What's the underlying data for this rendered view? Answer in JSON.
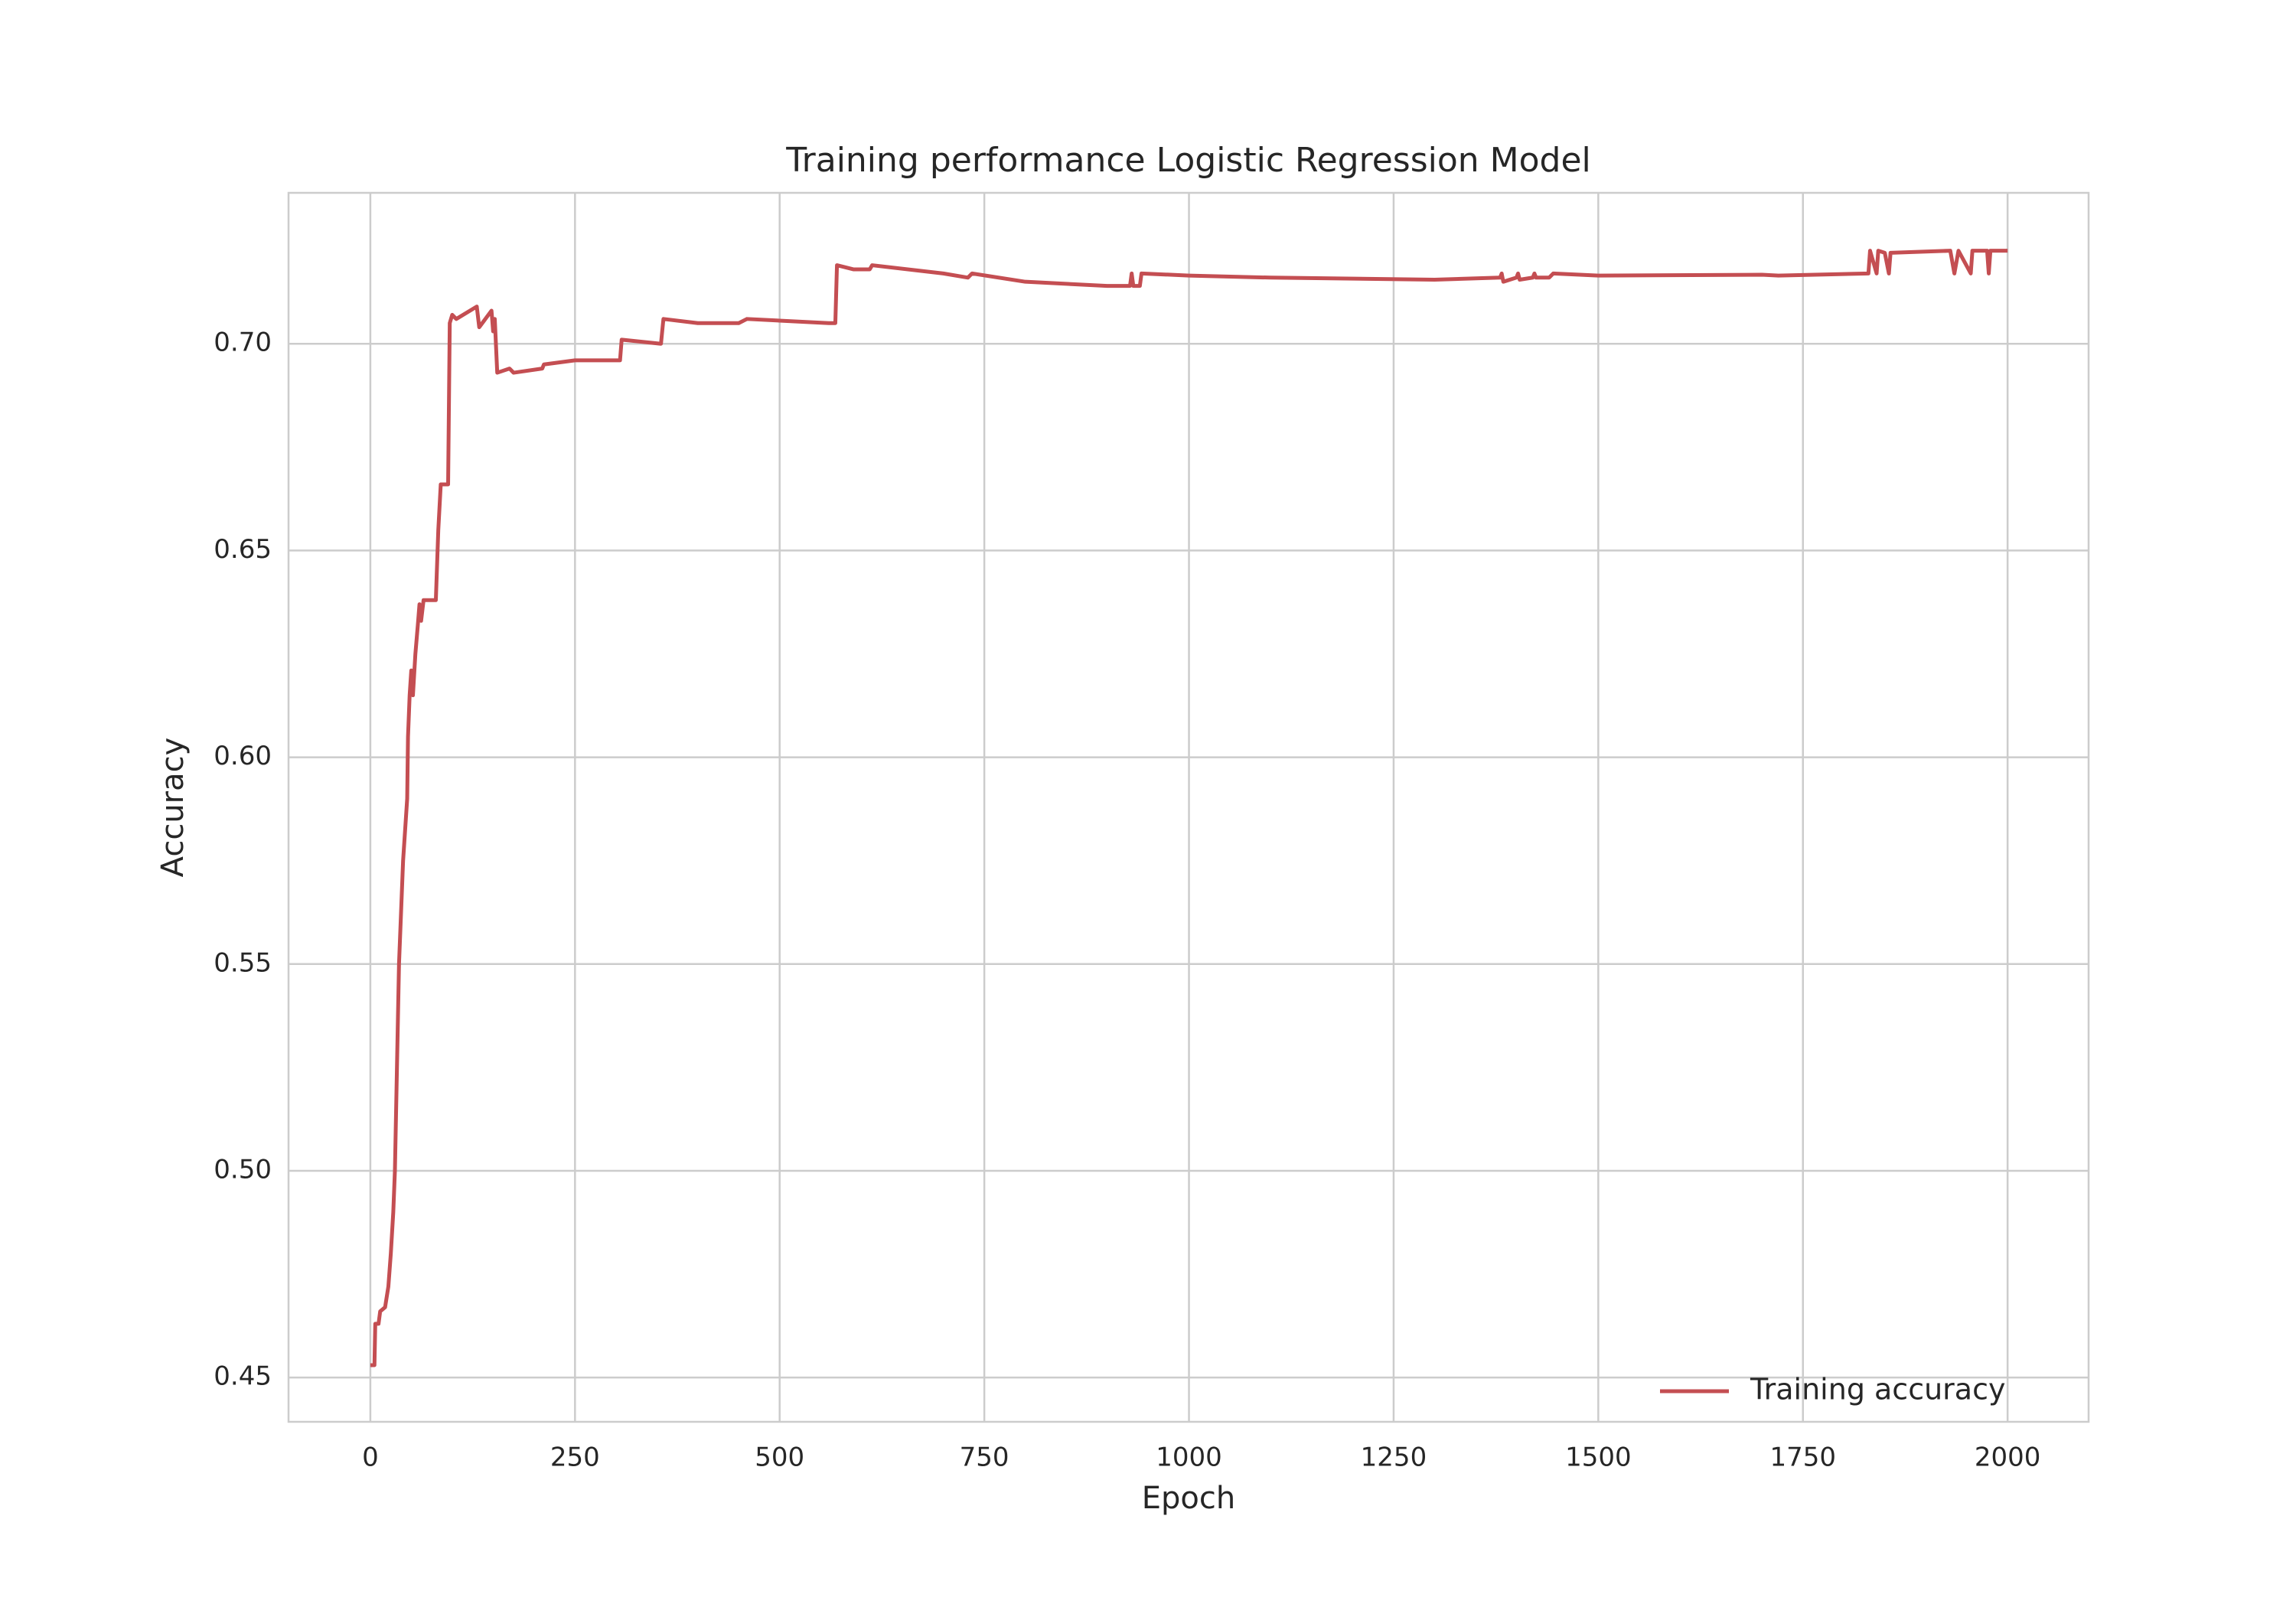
{
  "chart_data": {
    "type": "line",
    "title": "Training performance Logistic Regression Model",
    "xlabel": "Epoch",
    "ylabel": "Accuracy",
    "x": [
      0,
      5,
      6,
      10,
      12,
      18,
      22,
      25,
      28,
      30,
      32,
      35,
      40,
      45,
      46,
      48,
      50,
      52,
      55,
      58,
      60,
      62,
      65,
      80,
      83,
      86,
      95,
      97,
      100,
      105,
      130,
      133,
      148,
      150,
      152,
      155,
      170,
      175,
      210,
      212,
      250,
      305,
      307,
      355,
      358,
      400,
      450,
      460,
      560,
      568,
      570,
      590,
      610,
      613,
      700,
      730,
      735,
      800,
      900,
      928,
      930,
      932,
      940,
      942,
      1000,
      1100,
      1300,
      1380,
      1382,
      1384,
      1400,
      1402,
      1404,
      1420,
      1422,
      1424,
      1440,
      1445,
      1500,
      1700,
      1720,
      1830,
      1832,
      1840,
      1842,
      1850,
      1855,
      1857,
      1930,
      1935,
      1940,
      1955,
      1957,
      1975,
      1977,
      1979,
      2000
    ],
    "series": [
      {
        "name": "Training accuracy",
        "color": "#c44e52",
        "values": [
          0.453,
          0.453,
          0.463,
          0.463,
          0.466,
          0.467,
          0.472,
          0.48,
          0.49,
          0.5,
          0.52,
          0.55,
          0.575,
          0.59,
          0.605,
          0.615,
          0.621,
          0.615,
          0.625,
          0.632,
          0.637,
          0.633,
          0.638,
          0.638,
          0.655,
          0.666,
          0.666,
          0.705,
          0.707,
          0.706,
          0.709,
          0.704,
          0.708,
          0.703,
          0.706,
          0.693,
          0.694,
          0.693,
          0.694,
          0.695,
          0.696,
          0.696,
          0.701,
          0.7,
          0.706,
          0.705,
          0.705,
          0.706,
          0.705,
          0.705,
          0.719,
          0.718,
          0.718,
          0.719,
          0.717,
          0.716,
          0.717,
          0.715,
          0.714,
          0.714,
          0.717,
          0.714,
          0.714,
          0.717,
          0.7165,
          0.716,
          0.7155,
          0.716,
          0.717,
          0.715,
          0.716,
          0.717,
          0.7155,
          0.716,
          0.717,
          0.716,
          0.716,
          0.717,
          0.7165,
          0.7167,
          0.7165,
          0.717,
          0.7225,
          0.717,
          0.7225,
          0.722,
          0.717,
          0.722,
          0.7225,
          0.717,
          0.7225,
          0.717,
          0.7225,
          0.7225,
          0.717,
          0.7225,
          0.7225
        ]
      }
    ],
    "xlim": [
      -99.95,
      2098.95
    ],
    "ylim": [
      0.4393,
      0.7365
    ],
    "xticks": [
      0,
      250,
      500,
      750,
      1000,
      1250,
      1500,
      1750,
      2000
    ],
    "yticks": [
      0.45,
      {
        "value": 0.5,
        "label": "0.50"
      },
      0.55,
      {
        "value": 0.6,
        "label": "0.60"
      },
      0.65,
      {
        "value": 0.7,
        "label": "0.70"
      }
    ],
    "grid": true,
    "legend": "lower right"
  }
}
